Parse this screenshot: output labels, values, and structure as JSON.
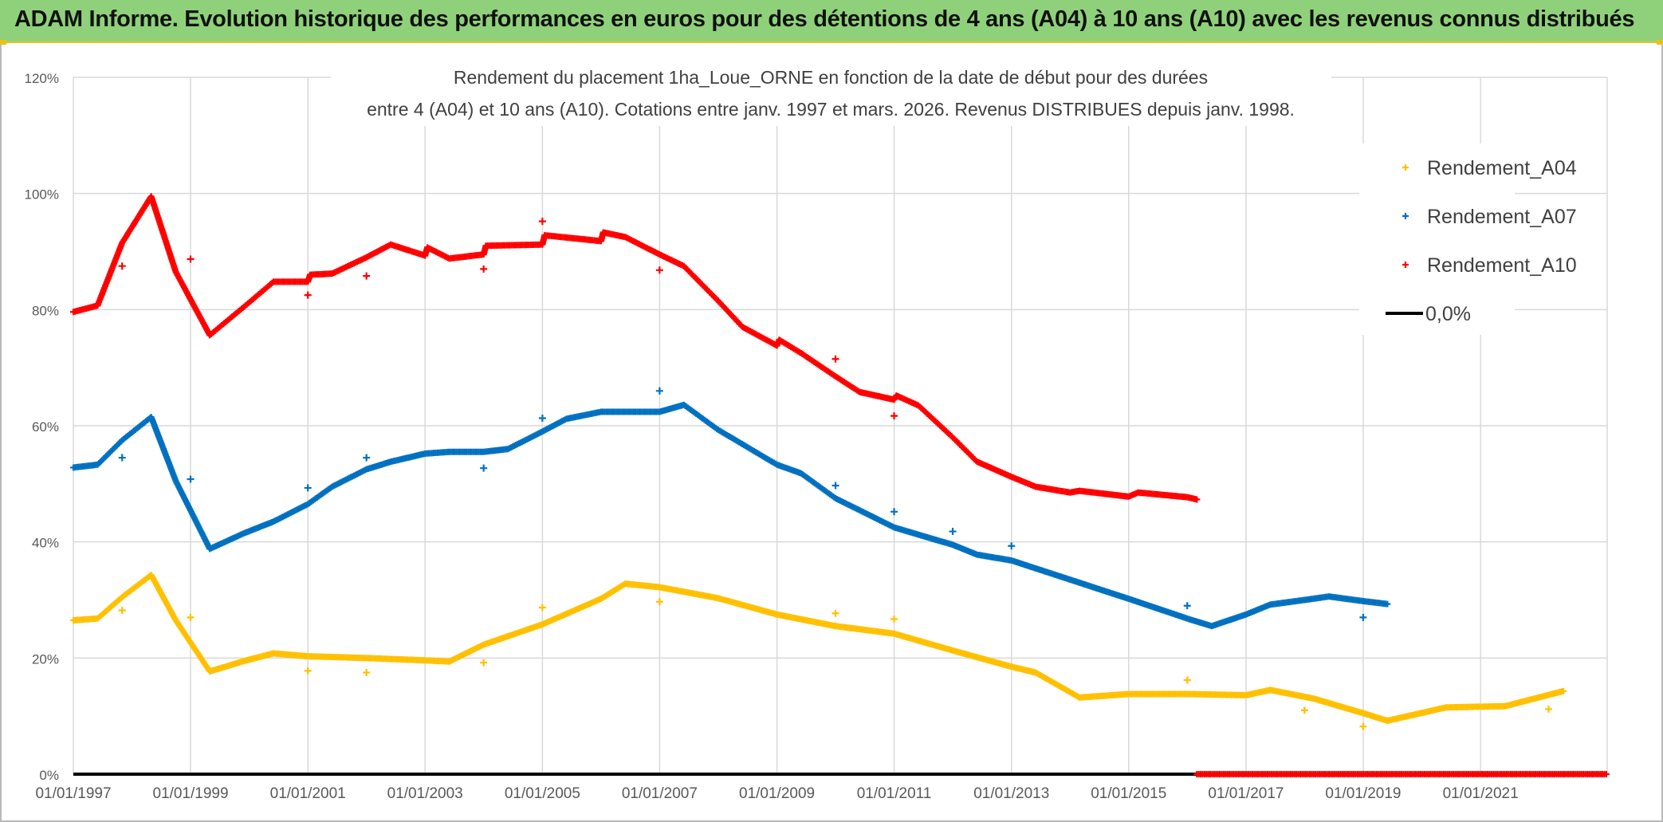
{
  "banner": {
    "title": "ADAM Informe. Evolution historique des performances en euros pour des détentions de 4 ans (A04) à 10 ans (A10) avec les revenus connus distribués"
  },
  "colors": {
    "A04": "#ffc000",
    "A07": "#0070c0",
    "A10": "#ff0000",
    "zero": "#000000",
    "banner": "#8fd17a",
    "grid": "#d9d9d9"
  },
  "chart_data": {
    "type": "scatter",
    "title": [
      "Rendement du placement 1ha_Loue_ORNE en fonction de la date de début pour des durées",
      "entre 4 (A04) et 10 ans (A10). Cotations entre janv. 1997 et mars. 2026. Revenus DISTRIBUES depuis janv. 1998."
    ],
    "xlabel": "",
    "ylabel": "",
    "xlim": [
      "1997-01-01",
      "2023-03-01"
    ],
    "ylim": [
      0,
      120
    ],
    "y_ticks": [
      "0%",
      "20%",
      "40%",
      "60%",
      "80%",
      "100%",
      "120%"
    ],
    "x_ticks": [
      {
        "date": "1997-01-01",
        "label": "01/01/1997"
      },
      {
        "date": "1999-01-01",
        "label": "01/01/1999"
      },
      {
        "date": "2001-01-01",
        "label": "01/01/2001"
      },
      {
        "date": "2003-01-01",
        "label": "01/01/2003"
      },
      {
        "date": "2005-01-01",
        "label": "01/01/2005"
      },
      {
        "date": "2007-01-01",
        "label": "01/01/2007"
      },
      {
        "date": "2009-01-01",
        "label": "01/01/2009"
      },
      {
        "date": "2011-01-01",
        "label": "01/01/2011"
      },
      {
        "date": "2013-01-01",
        "label": "01/01/2013"
      },
      {
        "date": "2015-01-01",
        "label": "01/01/2015"
      },
      {
        "date": "2017-01-01",
        "label": "01/01/2017"
      },
      {
        "date": "2019-01-01",
        "label": "01/01/2019"
      },
      {
        "date": "2021-01-01",
        "label": "01/01/2021"
      }
    ],
    "grid": true,
    "legend": {
      "position": "top-right"
    },
    "series": [
      {
        "name": "Rendement_A04",
        "color": "#ffc000",
        "marker": "+",
        "points": [
          [
            "1997-01-01",
            26.5
          ],
          [
            "1997-06-01",
            26.8
          ],
          [
            "1997-11-01",
            30.5
          ],
          [
            "1998-05-01",
            34.3
          ],
          [
            "1998-10-01",
            26.5
          ],
          [
            "1999-05-01",
            17.7
          ],
          [
            "1999-12-01",
            19.5
          ],
          [
            "2000-06-01",
            20.8
          ],
          [
            "2001-01-01",
            20.3
          ],
          [
            "2002-01-01",
            20.0
          ],
          [
            "2003-01-01",
            19.6
          ],
          [
            "2003-06-01",
            19.4
          ],
          [
            "2004-01-01",
            22.3
          ],
          [
            "2005-01-01",
            25.8
          ],
          [
            "2006-01-01",
            30.2
          ],
          [
            "2006-06-01",
            32.8
          ],
          [
            "2007-01-01",
            32.2
          ],
          [
            "2008-01-01",
            30.3
          ],
          [
            "2009-01-01",
            27.5
          ],
          [
            "2010-01-01",
            25.5
          ],
          [
            "2011-01-01",
            24.2
          ],
          [
            "2012-01-01",
            21.3
          ],
          [
            "2013-01-01",
            18.5
          ],
          [
            "2013-06-01",
            17.5
          ],
          [
            "2014-03-01",
            13.2
          ],
          [
            "2015-01-01",
            13.8
          ],
          [
            "2016-01-01",
            13.8
          ],
          [
            "2017-01-01",
            13.6
          ],
          [
            "2017-06-01",
            14.5
          ],
          [
            "2018-03-01",
            13.0
          ],
          [
            "2019-01-01",
            10.5
          ],
          [
            "2019-06-01",
            9.2
          ],
          [
            "2020-06-01",
            11.5
          ],
          [
            "2021-06-01",
            11.7
          ],
          [
            "2022-06-01",
            14.3
          ]
        ],
        "outliers": [
          [
            "1997-11-01",
            28.2
          ],
          [
            "1999-01-01",
            27.0
          ],
          [
            "2001-01-01",
            17.8
          ],
          [
            "2002-01-01",
            17.5
          ],
          [
            "2004-01-01",
            19.2
          ],
          [
            "2005-01-01",
            28.7
          ],
          [
            "2007-01-01",
            29.7
          ],
          [
            "2010-01-01",
            27.7
          ],
          [
            "2011-01-01",
            26.7
          ],
          [
            "2016-01-01",
            16.2
          ],
          [
            "2018-01-01",
            11.0
          ],
          [
            "2019-01-01",
            8.2
          ],
          [
            "2022-03-01",
            11.2
          ]
        ]
      },
      {
        "name": "Rendement_A07",
        "color": "#0070c0",
        "marker": "+",
        "points": [
          [
            "1997-01-01",
            52.8
          ],
          [
            "1997-06-01",
            53.3
          ],
          [
            "1997-11-01",
            57.5
          ],
          [
            "1998-05-01",
            61.5
          ],
          [
            "1998-10-01",
            50.5
          ],
          [
            "1999-05-01",
            38.8
          ],
          [
            "1999-12-01",
            41.5
          ],
          [
            "2000-06-01",
            43.5
          ],
          [
            "2001-01-01",
            46.5
          ],
          [
            "2001-06-01",
            49.5
          ],
          [
            "2002-01-01",
            52.5
          ],
          [
            "2002-06-01",
            53.8
          ],
          [
            "2003-01-01",
            55.2
          ],
          [
            "2003-06-01",
            55.5
          ],
          [
            "2004-01-01",
            55.5
          ],
          [
            "2004-06-01",
            56.0
          ],
          [
            "2005-01-01",
            59.0
          ],
          [
            "2005-06-01",
            61.2
          ],
          [
            "2006-01-01",
            62.4
          ],
          [
            "2007-01-01",
            62.4
          ],
          [
            "2007-06-01",
            63.6
          ],
          [
            "2008-01-01",
            59.3
          ],
          [
            "2009-01-01",
            53.3
          ],
          [
            "2009-06-01",
            51.8
          ],
          [
            "2010-01-01",
            47.5
          ],
          [
            "2011-01-01",
            42.5
          ],
          [
            "2012-01-01",
            39.5
          ],
          [
            "2012-06-01",
            37.8
          ],
          [
            "2013-01-01",
            36.8
          ],
          [
            "2014-01-01",
            33.5
          ],
          [
            "2015-01-01",
            30.2
          ],
          [
            "2016-01-01",
            26.8
          ],
          [
            "2016-06-01",
            25.5
          ],
          [
            "2017-01-01",
            27.5
          ],
          [
            "2017-06-01",
            29.2
          ],
          [
            "2018-01-01",
            30.0
          ],
          [
            "2018-06-01",
            30.6
          ],
          [
            "2019-01-01",
            29.8
          ],
          [
            "2019-06-01",
            29.3
          ]
        ],
        "outliers": [
          [
            "1997-11-01",
            54.5
          ],
          [
            "1999-01-01",
            50.8
          ],
          [
            "2001-01-01",
            49.3
          ],
          [
            "2002-01-01",
            54.5
          ],
          [
            "2004-01-01",
            52.7
          ],
          [
            "2005-01-01",
            61.3
          ],
          [
            "2007-01-01",
            66.0
          ],
          [
            "2010-01-01",
            49.7
          ],
          [
            "2011-01-01",
            45.2
          ],
          [
            "2012-01-01",
            41.8
          ],
          [
            "2013-01-01",
            39.3
          ],
          [
            "2016-01-01",
            29.0
          ],
          [
            "2019-01-01",
            27.0
          ]
        ]
      },
      {
        "name": "Rendement_A10",
        "color": "#ff0000",
        "marker": "+",
        "points": [
          [
            "1997-01-01",
            79.6
          ],
          [
            "1997-06-01",
            80.7
          ],
          [
            "1997-11-01",
            91.5
          ],
          [
            "1998-05-01",
            99.5
          ],
          [
            "1998-10-01",
            86.5
          ],
          [
            "1999-05-01",
            75.6
          ],
          [
            "1999-12-01",
            80.5
          ],
          [
            "2000-06-01",
            84.8
          ],
          [
            "2001-01-01",
            84.8
          ],
          [
            "2001-01-15",
            86.0
          ],
          [
            "2001-06-01",
            86.2
          ],
          [
            "2002-01-01",
            89.0
          ],
          [
            "2002-06-01",
            91.2
          ],
          [
            "2003-01-01",
            89.3
          ],
          [
            "2003-01-15",
            90.7
          ],
          [
            "2003-06-01",
            88.8
          ],
          [
            "2004-01-01",
            89.5
          ],
          [
            "2004-01-15",
            91.0
          ],
          [
            "2005-01-01",
            91.2
          ],
          [
            "2005-01-15",
            92.8
          ],
          [
            "2006-01-01",
            91.8
          ],
          [
            "2006-01-15",
            93.3
          ],
          [
            "2006-06-01",
            92.5
          ],
          [
            "2007-01-01",
            89.5
          ],
          [
            "2007-06-01",
            87.5
          ],
          [
            "2008-01-01",
            81.5
          ],
          [
            "2008-06-01",
            77.0
          ],
          [
            "2009-01-01",
            73.8
          ],
          [
            "2009-01-15",
            74.8
          ],
          [
            "2009-06-01",
            72.5
          ],
          [
            "2010-01-01",
            68.5
          ],
          [
            "2010-06-01",
            65.8
          ],
          [
            "2011-01-01",
            64.5
          ],
          [
            "2011-01-15",
            65.2
          ],
          [
            "2011-06-01",
            63.5
          ],
          [
            "2012-01-01",
            58.0
          ],
          [
            "2012-06-01",
            53.8
          ],
          [
            "2013-01-01",
            51.2
          ],
          [
            "2013-06-01",
            49.5
          ],
          [
            "2014-01-01",
            48.5
          ],
          [
            "2014-03-01",
            48.8
          ],
          [
            "2015-01-01",
            47.8
          ],
          [
            "2015-03-01",
            48.5
          ],
          [
            "2016-01-01",
            47.7
          ],
          [
            "2016-03-01",
            47.3
          ]
        ],
        "outliers": [
          [
            "1997-11-01",
            87.5
          ],
          [
            "1999-01-01",
            88.7
          ],
          [
            "2001-01-01",
            82.5
          ],
          [
            "2002-01-01",
            85.8
          ],
          [
            "2004-01-01",
            87.0
          ],
          [
            "2005-01-01",
            95.2
          ],
          [
            "2007-01-01",
            86.8
          ],
          [
            "2010-01-01",
            71.5
          ],
          [
            "2011-01-01",
            61.7
          ]
        ]
      },
      {
        "name": "0,0%",
        "color": "#000000",
        "type": "line",
        "points": [
          [
            "1997-01-01",
            0
          ],
          [
            "2023-03-01",
            0
          ]
        ]
      }
    ],
    "extra_markers": {
      "series": "Rendement_A10",
      "y": 0,
      "from": "2016-03-01",
      "to": "2023-03-01"
    }
  }
}
